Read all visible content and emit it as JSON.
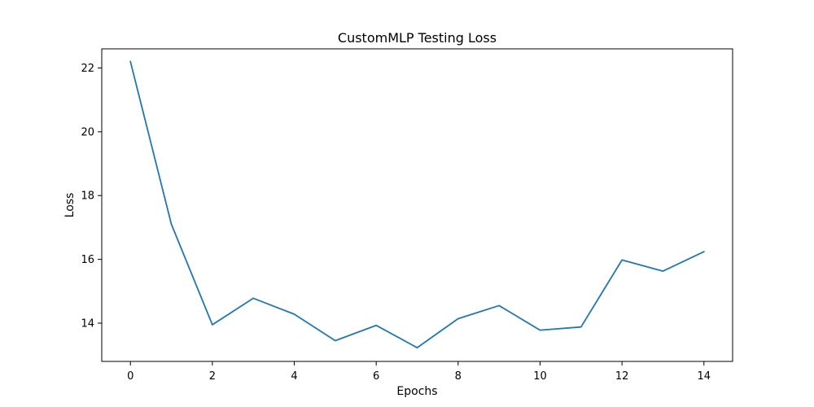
{
  "chart_data": {
    "type": "line",
    "title": "CustomMLP Testing Loss",
    "xlabel": "Epochs",
    "ylabel": "Loss",
    "xlim": [
      -0.7,
      14.7
    ],
    "ylim": [
      12.8,
      22.6
    ],
    "xticks": [
      0,
      2,
      4,
      6,
      8,
      10,
      12,
      14
    ],
    "yticks": [
      14,
      16,
      18,
      20,
      22
    ],
    "grid": false,
    "series": [
      {
        "color": "#1f77b4",
        "x": [
          0,
          1,
          2,
          3,
          4,
          5,
          6,
          7,
          8,
          9,
          10,
          11,
          12,
          13,
          14
        ],
        "y": [
          22.2,
          17.1,
          13.95,
          14.78,
          14.28,
          13.45,
          13.93,
          13.23,
          14.14,
          14.55,
          13.78,
          13.88,
          15.98,
          15.63,
          16.24
        ]
      }
    ]
  }
}
